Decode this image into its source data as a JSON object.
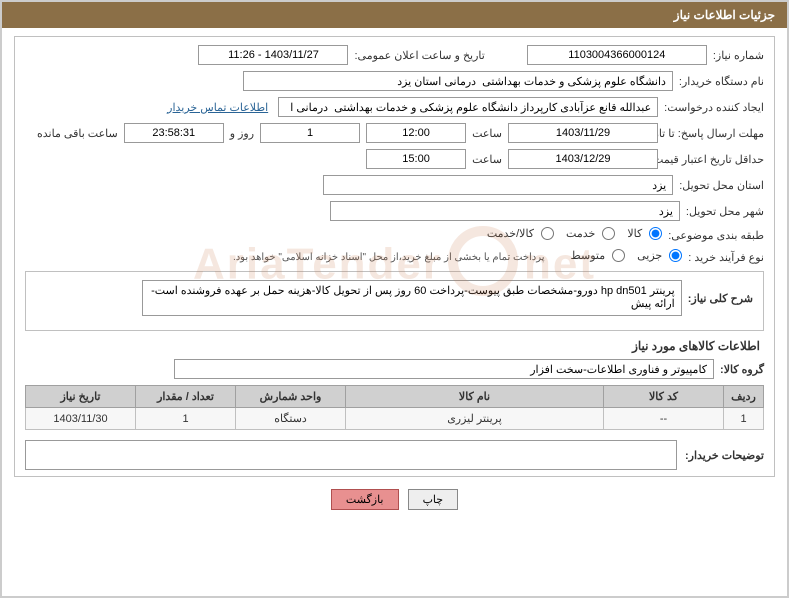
{
  "header": {
    "title": "جزئیات اطلاعات نیاز"
  },
  "labels": {
    "need_no": "شماره نیاز:",
    "announce_datetime": "تاریخ و ساعت اعلان عمومی:",
    "buyer_org": "نام دستگاه خریدار:",
    "requester": "ایجاد کننده درخواست:",
    "contact_link": "اطلاعات تماس خریدار",
    "deadline_send": "مهلت ارسال پاسخ: تا تاریخ:",
    "hour": "ساعت",
    "day_and": "روز و",
    "remaining": "ساعت باقی مانده",
    "validity": "حداقل تاریخ اعتبار قیمت: تا تاریخ:",
    "delivery_province": "استان محل تحویل:",
    "delivery_city": "شهر محل تحویل:",
    "classification": "طبقه بندی موضوعی:",
    "purchase_process": "نوع فرآیند خرید :",
    "payment_note": "پرداخت تمام یا بخشی از مبلغ خرید،از محل \"اسناد خزانه اسلامی\" خواهد بود.",
    "general_desc": "شرح کلی نیاز:",
    "goods_info": "اطلاعات کالاهای مورد نیاز",
    "goods_group": "گروه کالا:",
    "buyer_notes": "توضیحات خریدار:"
  },
  "values": {
    "need_no": "1103004366000124",
    "announce_datetime": "1403/11/27 - 11:26",
    "buyer_org": "دانشگاه علوم پزشکی و خدمات بهداشتی  درمانی استان یزد",
    "requester": "عبدالله قانع عزآبادی کارپرداز دانشگاه علوم پزشکی و خدمات بهداشتی  درمانی ا",
    "deadline_date": "1403/11/29",
    "deadline_time": "12:00",
    "remaining_days": "1",
    "remaining_hms": "23:58:31",
    "validity_date": "1403/12/29",
    "validity_time": "15:00",
    "delivery_province": "یزد",
    "delivery_city": "یزد",
    "general_desc": "پرینتر hp dn501 دورو-مشخصات طبق پیوست-پرداخت 60 روز پس از تحویل کالا-هزینه حمل بر عهده فروشنده است-ارائه پیش",
    "goods_group": "کامپیوتر و فناوری اطلاعات-سخت افزار"
  },
  "radios": {
    "classification": [
      {
        "label": "کالا",
        "checked": true
      },
      {
        "label": "خدمت",
        "checked": false
      },
      {
        "label": "کالا/خدمت",
        "checked": false
      }
    ],
    "purchase_process": [
      {
        "label": "جزیی",
        "checked": true
      },
      {
        "label": "متوسط",
        "checked": false
      }
    ]
  },
  "table": {
    "headers": {
      "rownum": "ردیف",
      "code": "کد کالا",
      "name": "نام کالا",
      "unit": "واحد شمارش",
      "qty": "تعداد / مقدار",
      "date": "تاریخ نیاز"
    },
    "rows": [
      {
        "rownum": "1",
        "code": "--",
        "name": "پرينتر ليزری",
        "unit": "دستگاه",
        "qty": "1",
        "date": "1403/11/30"
      }
    ]
  },
  "buttons": {
    "print": "چاپ",
    "back": "بازگشت"
  },
  "watermark": "AriaTender.net",
  "colors": {
    "header_bg": "#8b6f47",
    "header_text": "#ffffff",
    "border": "#c0c0c0",
    "th_bg": "#d0d0d0",
    "td_bg": "#f7f7f7",
    "link": "#2a6496",
    "btn_danger_bg": "#e89090"
  }
}
